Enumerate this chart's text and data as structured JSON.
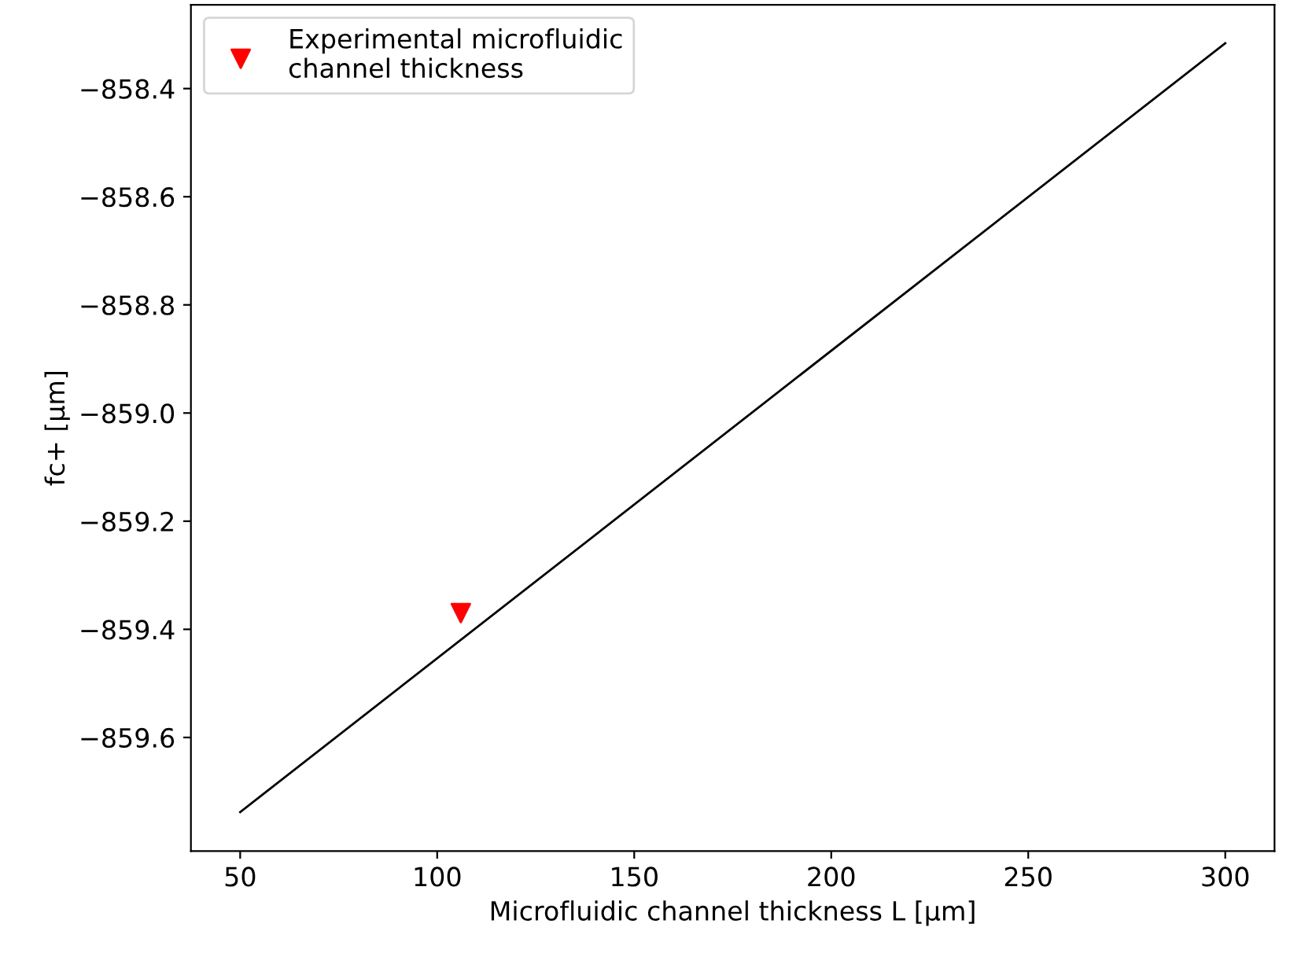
{
  "chart_data": {
    "type": "line",
    "xlabel": "Microfluidic channel thickness L [μm]",
    "ylabel": "fc+ [μm]",
    "xlim": [
      37.5,
      312.5
    ],
    "xticks": [
      50,
      100,
      150,
      200,
      250,
      300
    ],
    "ylim": [
      -859.81,
      -858.245
    ],
    "yticks": [
      {
        "value": -859.6,
        "label": "−859.6"
      },
      {
        "value": -859.4,
        "label": "−859.4"
      },
      {
        "value": -859.2,
        "label": "−859.2"
      },
      {
        "value": -859.0,
        "label": "−859.0"
      },
      {
        "value": -858.8,
        "label": "−858.8"
      },
      {
        "value": -858.6,
        "label": "−858.6"
      },
      {
        "value": -858.4,
        "label": "−858.4"
      }
    ],
    "grid": false,
    "legend": "top left",
    "series": [
      {
        "color": "#000000",
        "x": [
          50,
          300
        ],
        "values": [
          -859.738,
          -858.316
        ]
      },
      {
        "type": "scatter",
        "name": "Experimental microfluidic\nchannel thickness",
        "color": "#ff0000",
        "marker": "triangle",
        "x": [
          106
        ],
        "values": [
          -859.37
        ]
      }
    ]
  }
}
